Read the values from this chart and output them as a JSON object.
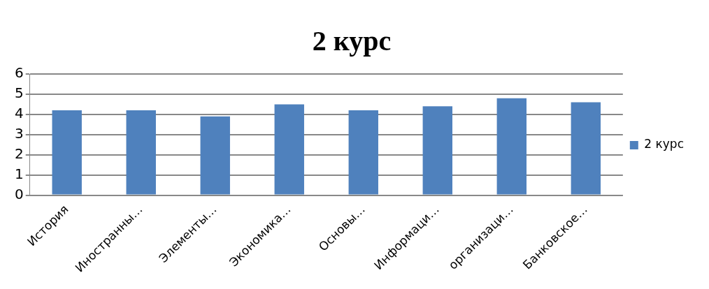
{
  "chart_data": {
    "type": "bar",
    "title": "2 курс",
    "categories": [
      "История",
      "Иностранны…",
      "Элементы…",
      "Экономика…",
      "Основы…",
      "Информаци…",
      "организаци…",
      "Банковское…"
    ],
    "series": [
      {
        "name": "2 курс",
        "color": "#4f81bd",
        "values": [
          4.2,
          4.2,
          3.9,
          4.5,
          4.2,
          4.4,
          4.8,
          4.6
        ]
      }
    ],
    "ylim": [
      0,
      6
    ],
    "yticks": [
      0,
      1,
      2,
      3,
      4,
      5,
      6
    ],
    "grid": "y",
    "legend": "right"
  }
}
